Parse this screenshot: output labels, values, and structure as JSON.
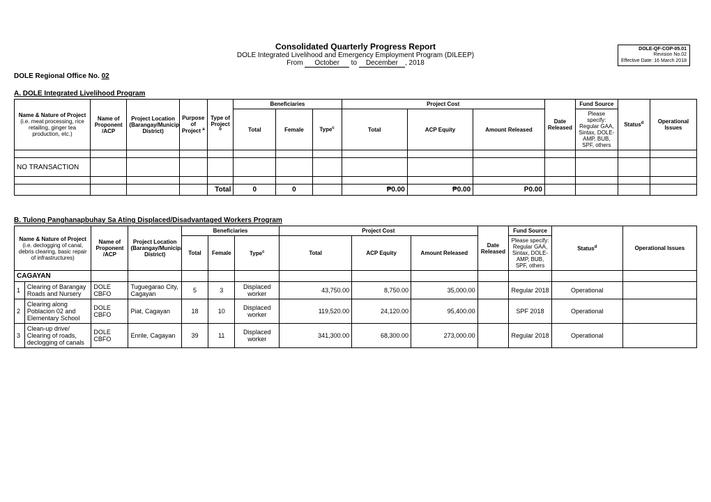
{
  "form": {
    "code": "DOLE-QF-COP-05.01",
    "revision": "Revision No.02",
    "effective": "Effective Date: 16 March 2018"
  },
  "header": {
    "title": "Consolidated Quarterly Progress Report",
    "subtitle": "DOLE Integrated Livelihood and Emergency Employment Program (DILEEP)",
    "range_prefix": "From ",
    "range_from": "October",
    "range_mid": " to ",
    "range_to": "December",
    "range_year": ", 2018"
  },
  "office": {
    "label": "DOLE Regional Office No. ",
    "num": "02"
  },
  "secA": {
    "heading": "A.  DOLE Integrated Livelihood Program",
    "cols": {
      "name": "Name & Nature of Project (i.e. meat processing, rice retailing, ginger tea production, etc.)",
      "proponent": "Name of Proponent /ACP",
      "location": "Project Location (Barangay/Municipality/Province, District)",
      "purpose": "Purpose of Project ",
      "purpose_sup": "a",
      "type_proj": "Type of Project ",
      "type_proj_sup": "b",
      "beneficiaries": "Beneficiaries",
      "total": "Total",
      "female": "Female",
      "type": "Type",
      "type_sup": "c",
      "pcost": "Project Cost",
      "cost_total": "Total",
      "acp": "ACP Equity",
      "amount": "Amount Released",
      "date": "Date Released",
      "fund": "Fund Source",
      "fund_detail": "Please specify: Regular GAA, Sintax, DOLE-AMP, BUB, SPF, others",
      "status": "Status",
      "status_sup": "d",
      "issues": "Operational Issues"
    },
    "no_trans": "NO TRANSACTION",
    "totals": {
      "label": "Total",
      "b_total": "0",
      "b_female": "0",
      "cost_total": "₱0.00",
      "acp": "₱0.00",
      "amount": "P0.00"
    }
  },
  "secB": {
    "heading": "B.  Tulong Panghanapbuhay Sa Ating Displaced/Disadvantaged Workers Program",
    "cols": {
      "name": "Name & Nature of Project (i.e. declogging of canal, debris clearing, basic repair of infrastructures)",
      "proponent": "Name of Proponent /ACP",
      "location": "Project Location (Barangay/Municipality/Province, District)",
      "beneficiaries": "Beneficiaries",
      "total": "Total",
      "female": "Female",
      "type": "Type",
      "type_sup": "c",
      "pcost": "Project Cost",
      "cost_total": "Total",
      "acp": "ACP Equity",
      "amount": "Amount Released",
      "date": "Date Released",
      "fund": "Fund Source",
      "fund_detail": "Please specify: Regular GAA, Sintax, DOLE-AMP, BUB, SPF, others",
      "status": "Status",
      "status_sup": "d",
      "issues": "Operational Issues"
    },
    "province": "CAGAYAN",
    "rows": [
      {
        "n": "1",
        "name": "Clearing of Barangay Roads and Nursery",
        "prop": "DOLE CBFO",
        "loc": "Tuguegarao City, Cagayan",
        "total": "5",
        "female": "3",
        "type": "Displaced worker",
        "cost_total": "43,750.00",
        "acp": "8,750.00",
        "amount": "35,000.00",
        "date": "",
        "fund": "Regular 2018",
        "status": "Operational",
        "issues": ""
      },
      {
        "n": "2",
        "name": "Clearing along Poblacion 02 and Elementary School",
        "prop": "DOLE CBFO",
        "loc": "Piat, Cagayan",
        "total": "18",
        "female": "10",
        "type": "Displaced worker",
        "cost_total": "119,520.00",
        "acp": "24,120.00",
        "amount": "95,400.00",
        "date": "",
        "fund": "SPF 2018",
        "status": "Operational",
        "issues": ""
      },
      {
        "n": "3",
        "name": "Clean-up drive/ Clearing of roads, declogging of canals",
        "prop": "DOLE CBFO",
        "loc": "Enrile, Cagayan",
        "total": "39",
        "female": "11",
        "type": "Displaced worker",
        "cost_total": "341,300.00",
        "acp": "68,300.00",
        "amount": "273,000.00",
        "date": "",
        "fund": "Regular 2018",
        "status": "Operational",
        "issues": ""
      }
    ]
  }
}
